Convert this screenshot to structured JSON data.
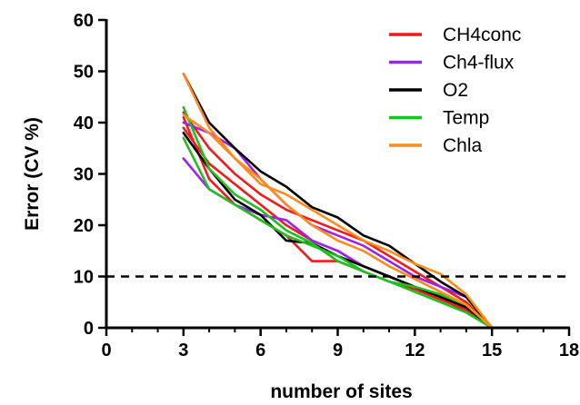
{
  "chart_data": {
    "type": "line",
    "title": "",
    "xlabel": "number of sites",
    "ylabel": "Error (CV %)",
    "xlim": [
      0,
      18
    ],
    "ylim": [
      0,
      60
    ],
    "xticks": [
      0,
      3,
      6,
      9,
      12,
      15,
      18
    ],
    "yticks": [
      0,
      10,
      20,
      30,
      40,
      50,
      60
    ],
    "grid": false,
    "legend_position": "top-right",
    "reference_line": {
      "y": 10,
      "style": "dashed",
      "color": "#000000"
    },
    "series": [
      {
        "name": "CH4conc",
        "color": "#ee1c1c",
        "lines": [
          [
            [
              3,
              41
            ],
            [
              4,
              29
            ],
            [
              5,
              24
            ],
            [
              6,
              21
            ],
            [
              7,
              18
            ],
            [
              8,
              13
            ],
            [
              9,
              13
            ],
            [
              10,
              11
            ],
            [
              11,
              9
            ],
            [
              12,
              7.5
            ],
            [
              13,
              5.5
            ],
            [
              14,
              3.5
            ],
            [
              15,
              0
            ]
          ],
          [
            [
              3,
              39
            ],
            [
              4,
              32
            ],
            [
              5,
              28
            ],
            [
              6,
              24
            ],
            [
              7,
              20
            ],
            [
              8,
              17
            ],
            [
              9,
              15
            ],
            [
              10,
              12
            ],
            [
              11,
              10
            ],
            [
              12,
              8
            ],
            [
              13,
              6
            ],
            [
              14,
              3
            ],
            [
              15,
              0
            ]
          ],
          [
            [
              3,
              42
            ],
            [
              4,
              35
            ],
            [
              5,
              30
            ],
            [
              6,
              26
            ],
            [
              7,
              23
            ],
            [
              8,
              21
            ],
            [
              9,
              19
            ],
            [
              10,
              17
            ],
            [
              11,
              14
            ],
            [
              12,
              11
            ],
            [
              13,
              8
            ],
            [
              14,
              5
            ],
            [
              15,
              0
            ]
          ]
        ]
      },
      {
        "name": "Ch4-flux",
        "color": "#a020f0",
        "lines": [
          [
            [
              3,
              33
            ],
            [
              4,
              27
            ],
            [
              5,
              24
            ],
            [
              6,
              22
            ],
            [
              7,
              21
            ],
            [
              8,
              17
            ],
            [
              9,
              15
            ],
            [
              10,
              12
            ],
            [
              11,
              10
            ],
            [
              12,
              8
            ],
            [
              13,
              6
            ],
            [
              14,
              4
            ],
            [
              15,
              0
            ]
          ],
          [
            [
              3,
              40
            ],
            [
              4,
              38
            ],
            [
              5,
              35
            ],
            [
              6,
              29
            ],
            [
              7,
              24
            ],
            [
              8,
              20
            ],
            [
              9,
              18
            ],
            [
              10,
              16
            ],
            [
              11,
              13
            ],
            [
              12,
              10
            ],
            [
              13,
              8
            ],
            [
              14,
              6
            ],
            [
              15,
              0
            ]
          ]
        ]
      },
      {
        "name": "O2",
        "color": "#000000",
        "lines": [
          [
            [
              3,
              49.5
            ],
            [
              4,
              40
            ],
            [
              5,
              35
            ],
            [
              6,
              30.5
            ],
            [
              7,
              27.5
            ],
            [
              8,
              23.5
            ],
            [
              9,
              21.5
            ],
            [
              10,
              18
            ],
            [
              11,
              16
            ],
            [
              12,
              12.5
            ],
            [
              13,
              9
            ],
            [
              14,
              6
            ],
            [
              15,
              0
            ]
          ],
          [
            [
              3,
              38
            ],
            [
              4,
              31
            ],
            [
              5,
              25
            ],
            [
              6,
              22
            ],
            [
              7,
              17
            ],
            [
              8,
              16.5
            ],
            [
              9,
              14
            ],
            [
              10,
              12
            ],
            [
              11,
              10
            ],
            [
              12,
              8
            ],
            [
              13,
              6
            ],
            [
              14,
              4
            ],
            [
              15,
              0
            ]
          ]
        ]
      },
      {
        "name": "Temp",
        "color": "#1fbf1f",
        "lines": [
          [
            [
              3,
              43
            ],
            [
              4,
              31
            ],
            [
              5,
              26
            ],
            [
              6,
              23
            ],
            [
              7,
              19
            ],
            [
              8,
              16.5
            ],
            [
              9,
              13
            ],
            [
              10,
              11
            ],
            [
              11,
              9
            ],
            [
              12,
              8
            ],
            [
              13,
              6.5
            ],
            [
              14,
              4.5
            ],
            [
              15,
              0
            ]
          ],
          [
            [
              3,
              37
            ],
            [
              4,
              27
            ],
            [
              5,
              24
            ],
            [
              6,
              21
            ],
            [
              7,
              18
            ],
            [
              8,
              16
            ],
            [
              9,
              14
            ],
            [
              10,
              11
            ],
            [
              11,
              9
            ],
            [
              12,
              7
            ],
            [
              13,
              5
            ],
            [
              14,
              3
            ],
            [
              15,
              0
            ]
          ]
        ]
      },
      {
        "name": "Chla",
        "color": "#ff8c1a",
        "lines": [
          [
            [
              3,
              49.5
            ],
            [
              4,
              39
            ],
            [
              5,
              33
            ],
            [
              6,
              28
            ],
            [
              7,
              26
            ],
            [
              8,
              23
            ],
            [
              9,
              20
            ],
            [
              10,
              17
            ],
            [
              11,
              15
            ],
            [
              12,
              12.5
            ],
            [
              13,
              10.5
            ],
            [
              14,
              6.5
            ],
            [
              15,
              0
            ]
          ],
          [
            [
              3,
              41.5
            ],
            [
              4,
              38
            ],
            [
              5,
              33
            ],
            [
              6,
              29
            ],
            [
              7,
              24
            ],
            [
              8,
              20
            ],
            [
              9,
              17
            ],
            [
              10,
              15
            ],
            [
              11,
              12
            ],
            [
              12,
              9.5
            ],
            [
              13,
              7
            ],
            [
              14,
              4.5
            ],
            [
              15,
              0
            ]
          ]
        ]
      }
    ]
  }
}
